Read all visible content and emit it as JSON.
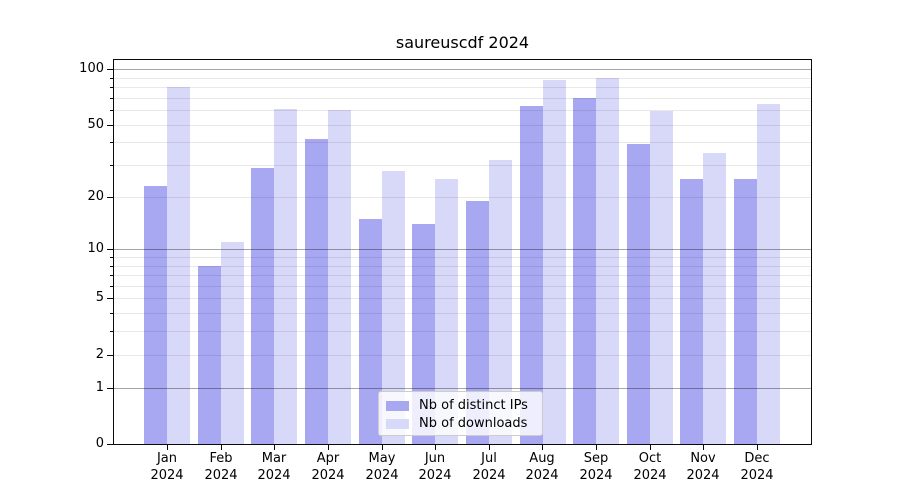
{
  "title": "saureuscdf 2024",
  "chart_data": {
    "type": "bar",
    "title": "saureuscdf 2024",
    "categories": [
      "Jan",
      "Feb",
      "Mar",
      "Apr",
      "May",
      "Jun",
      "Jul",
      "Aug",
      "Sep",
      "Oct",
      "Nov",
      "Dec"
    ],
    "x_tick_second_line": "2024",
    "series": [
      {
        "name": "Nb of distinct IPs",
        "color": "#a8a8f2",
        "values": [
          23,
          8,
          29,
          42,
          15,
          14,
          19,
          63,
          70,
          39,
          25,
          25
        ]
      },
      {
        "name": "Nb of downloads",
        "color": "#d8d8f9",
        "values": [
          80,
          11,
          61,
          60,
          28,
          25,
          32,
          87,
          90,
          59,
          35,
          65
        ]
      }
    ],
    "yscale": "log1p",
    "ylim": [
      0,
      112
    ],
    "yticks_labeled": [
      0,
      1,
      2,
      5,
      10,
      20,
      50,
      100
    ],
    "yticks_major": [
      1,
      10,
      100
    ],
    "yticks_minor_unlabeled": [
      3,
      4,
      6,
      7,
      8,
      9,
      30,
      40,
      60,
      70,
      80,
      90
    ],
    "grid": true,
    "legend_position": "lower center"
  },
  "colors": {
    "background": "#ffffff",
    "spine": "#0a0a0a",
    "grid_major": "rgba(0,0,0,0.35)",
    "grid_minor": "rgba(0,0,0,0.09)",
    "tick_text": "#000000",
    "legend_border": "#cccccc",
    "legend_background": "rgba(255,255,255,0.8)"
  }
}
